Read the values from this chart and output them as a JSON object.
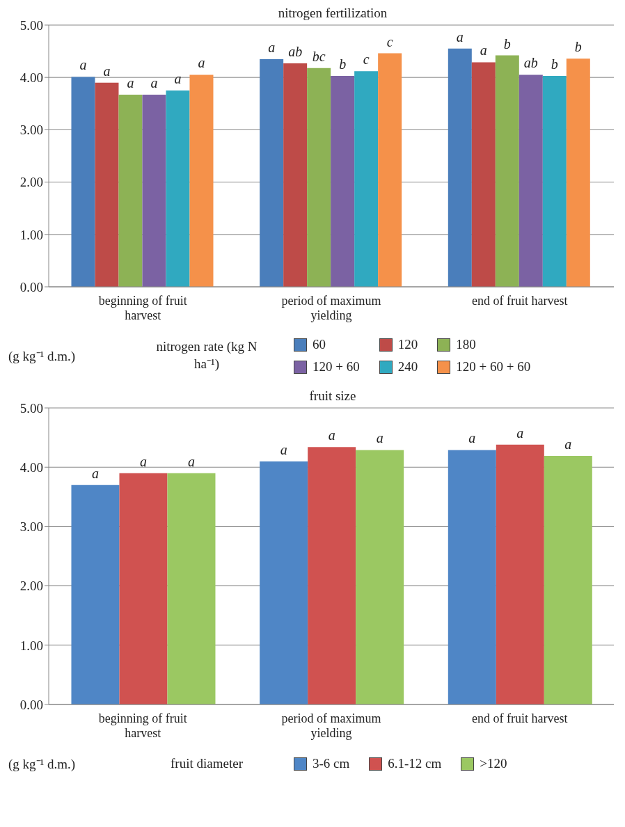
{
  "chart_data": [
    {
      "type": "bar",
      "title": "nitrogen fertilization",
      "ylabel": "(g kg⁻¹ d.m.)",
      "legend_title": "nitrogen rate (kg N ha⁻¹)",
      "categories": [
        "beginning of fruit harvest",
        "period of maximum yielding",
        "end of fruit harvest"
      ],
      "series": [
        {
          "name": "60",
          "color": "#4a7ebb",
          "values": [
            4.01,
            4.35,
            4.55
          ],
          "value_labels": [
            "a",
            "a",
            "a"
          ]
        },
        {
          "name": "120",
          "color": "#be4b48",
          "values": [
            3.9,
            4.27,
            4.29
          ],
          "value_labels": [
            "a",
            "ab",
            "a"
          ]
        },
        {
          "name": "180",
          "color": "#8db255",
          "values": [
            3.67,
            4.18,
            4.42
          ],
          "value_labels": [
            "a",
            "bc",
            "b"
          ]
        },
        {
          "name": "120 + 60",
          "color": "#7b62a3",
          "values": [
            3.67,
            4.03,
            4.05
          ],
          "value_labels": [
            "a",
            "b",
            "ab"
          ]
        },
        {
          "name": "240",
          "color": "#30a9c0",
          "values": [
            3.75,
            4.12,
            4.03
          ],
          "value_labels": [
            "a",
            "c",
            "b"
          ]
        },
        {
          "name": "120 + 60 + 60",
          "color": "#f5914a",
          "values": [
            4.05,
            4.46,
            4.36
          ],
          "value_labels": [
            "a",
            "c",
            "b"
          ]
        }
      ],
      "ylim": [
        0,
        5
      ],
      "yticks": [
        {
          "value": 0,
          "label": "0.00"
        },
        {
          "value": 1,
          "label": "1.00"
        },
        {
          "value": 2,
          "label": "2.00"
        },
        {
          "value": 3,
          "label": "3.00"
        },
        {
          "value": 4,
          "label": "4.00"
        },
        {
          "value": 5,
          "label": "5.00"
        }
      ],
      "grid": "y",
      "legend": "bottom"
    },
    {
      "type": "bar",
      "title": "fruit size",
      "ylabel": "(g kg⁻¹ d.m.)",
      "legend_title": "fruit diameter",
      "categories": [
        "beginning of fruit harvest",
        "period of maximum yielding",
        "end of fruit harvest"
      ],
      "series": [
        {
          "name": "3-6 cm",
          "color": "#4f86c6",
          "values": [
            3.7,
            4.1,
            4.29
          ],
          "value_labels": [
            "a",
            "a",
            "a"
          ]
        },
        {
          "name": "6.1-12 cm",
          "color": "#d05250",
          "values": [
            3.9,
            4.34,
            4.38
          ],
          "value_labels": [
            "a",
            "a",
            "a"
          ]
        },
        {
          "name": ">120",
          "color": "#9bc862",
          "values": [
            3.9,
            4.29,
            4.19
          ],
          "value_labels": [
            "a",
            "a",
            "a"
          ]
        }
      ],
      "ylim": [
        0,
        5
      ],
      "yticks": [
        {
          "value": 0,
          "label": "0.00"
        },
        {
          "value": 1,
          "label": "1.00"
        },
        {
          "value": 2,
          "label": "2.00"
        },
        {
          "value": 3,
          "label": "3.00"
        },
        {
          "value": 4,
          "label": "4.00"
        },
        {
          "value": 5,
          "label": "5.00"
        }
      ],
      "grid": "y",
      "legend": "bottom"
    }
  ]
}
